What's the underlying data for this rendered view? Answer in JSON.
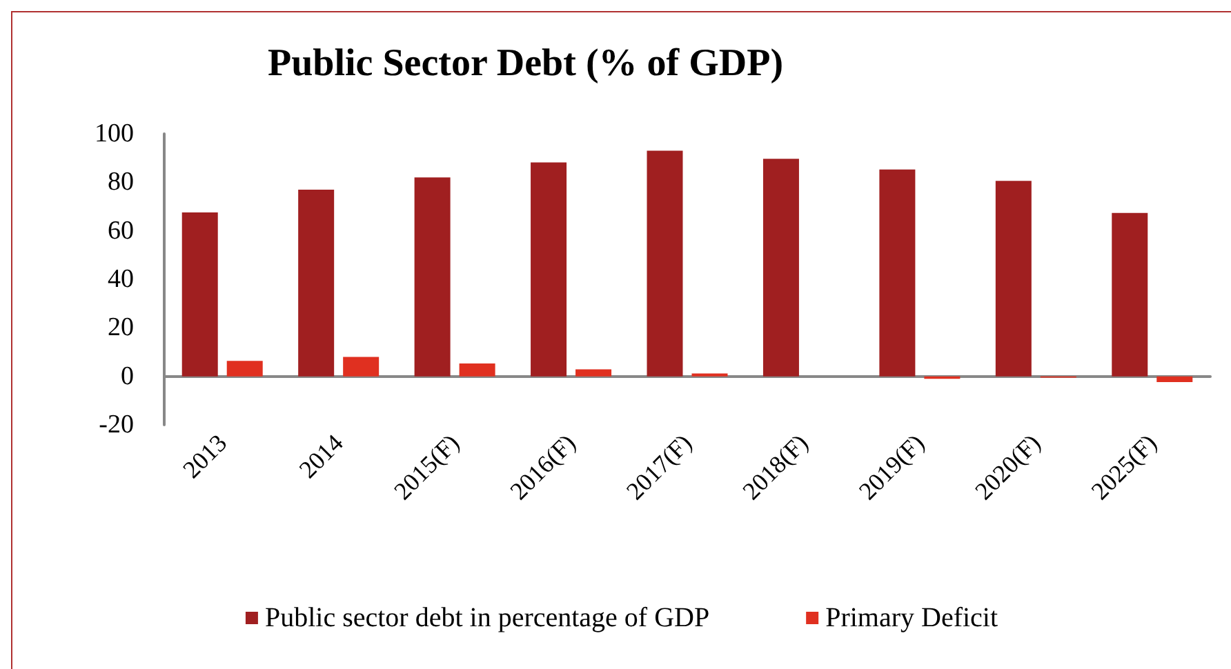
{
  "chart_data": {
    "type": "bar",
    "title": "Public Sector Debt (% of GDP)",
    "categories": [
      "2013",
      "2014",
      "2015(F)",
      "2016(F)",
      "2017(F)",
      "2018(F)",
      "2019(F)",
      "2020(F)",
      "2025(F)"
    ],
    "series": [
      {
        "name": "Public sector debt in percentage of GDP",
        "color": "#a01f20",
        "values": [
          67.6,
          77,
          82,
          88.2,
          93,
          89.7,
          85.3,
          80.6,
          67.4
        ]
      },
      {
        "name": "Primary Deficit",
        "color": "#e03020",
        "values": [
          6.4,
          8,
          5.3,
          2.9,
          1.2,
          0,
          -1,
          -0.5,
          -2.4
        ]
      }
    ],
    "ylim": [
      -20,
      100
    ],
    "yticks": [
      -20,
      0,
      20,
      40,
      60,
      80,
      100
    ],
    "grid": false,
    "legend": "bottom"
  }
}
